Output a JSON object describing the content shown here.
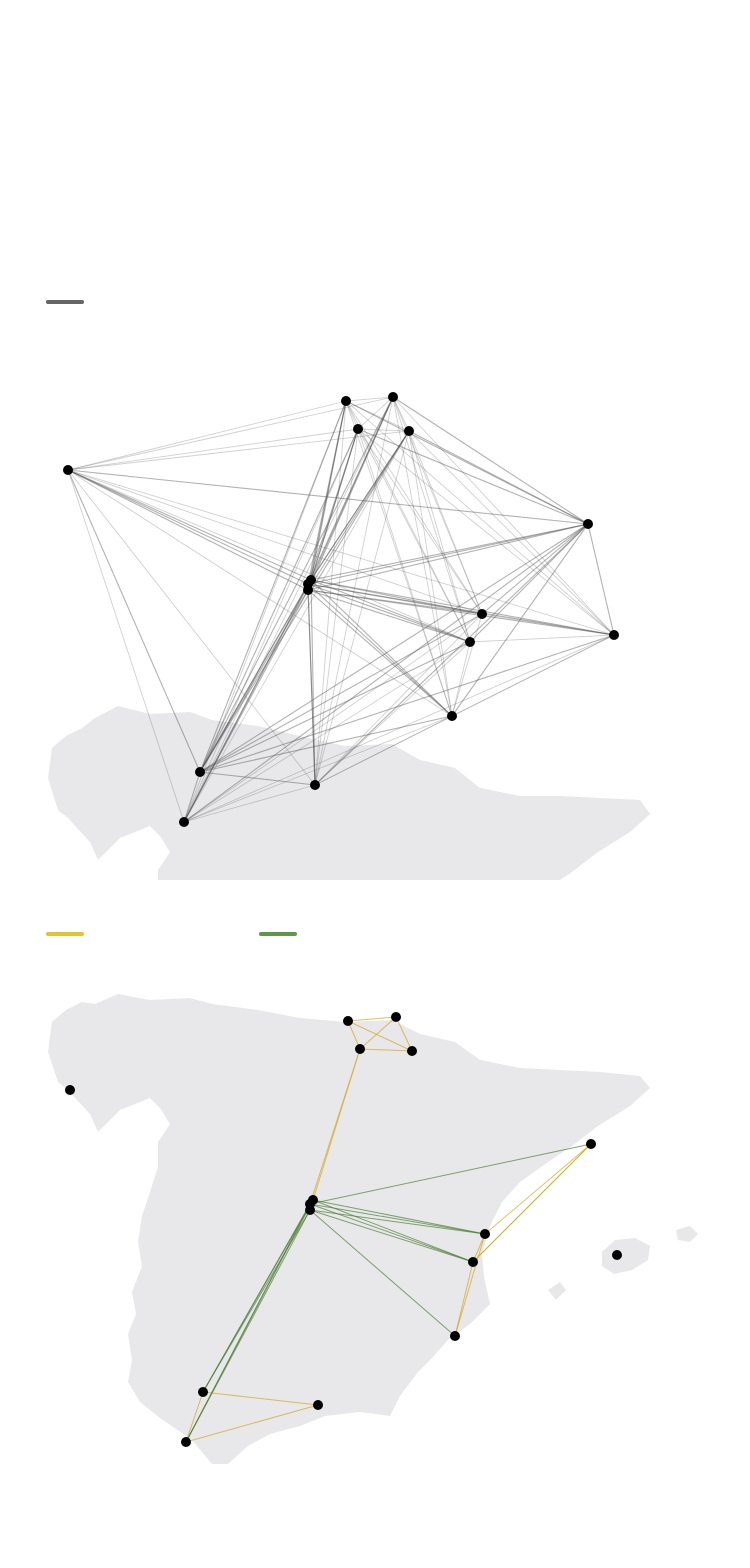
{
  "colors": {
    "land": "#e8e8ea",
    "city": "#000000",
    "legend_all": "#666666",
    "legend_yellow": "#e1c530",
    "legend_green": "#5d9944",
    "edge_gray": "#555555",
    "edge_yellow": "#d4a92a",
    "edge_green": "#4e7f38"
  },
  "maps": [
    {
      "id": "all-routes",
      "legend": [
        {
          "name": "all-routes",
          "color_key": "legend_all",
          "label": ""
        }
      ]
    },
    {
      "id": "direct-routes",
      "legend": [
        {
          "name": "yellow-routes",
          "color_key": "legend_yellow",
          "label": ""
        },
        {
          "name": "green-routes",
          "color_key": "legend_green",
          "label": ""
        }
      ]
    }
  ]
}
